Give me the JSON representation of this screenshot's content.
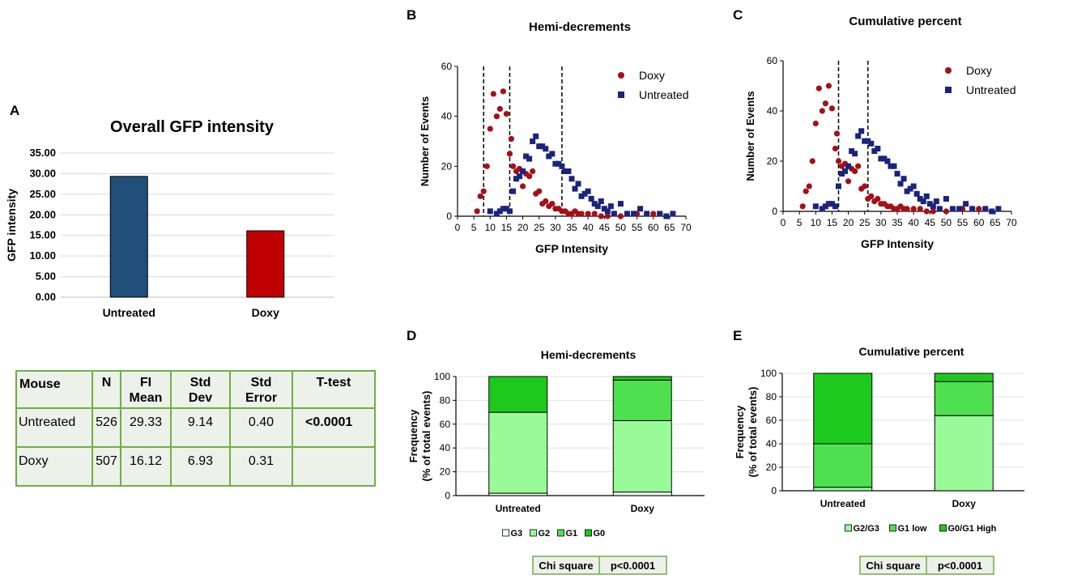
{
  "panels": {
    "A": {
      "letter": "A",
      "chart_data": {
        "type": "bar",
        "title": "Overall GFP intensity",
        "ylabel": "GFP intensity",
        "xlabel": "",
        "categories": [
          "Untreated",
          "Doxy"
        ],
        "values": [
          29.33,
          16.12
        ],
        "colors": [
          "#1f4e79",
          "#c00000"
        ],
        "ylim": [
          0,
          35
        ],
        "yticks": [
          "0.00",
          "5.00",
          "10.00",
          "15.00",
          "20.00",
          "25.00",
          "30.00",
          "35.00"
        ],
        "grid": true
      },
      "table": {
        "headers": [
          "Mouse",
          "N",
          "FI Mean",
          "Std Dev",
          "Std Error",
          "T-test"
        ],
        "rows": [
          [
            "Untreated",
            "526",
            "29.33",
            "9.14",
            "0.40",
            "<0.0001"
          ],
          [
            "Doxy",
            "507",
            "16.12",
            "6.93",
            "0.31",
            ""
          ]
        ]
      }
    },
    "B": {
      "letter": "B",
      "chart_data": {
        "type": "scatter",
        "title": "Hemi-decrements",
        "xlabel": "GFP Intensity",
        "ylabel": "Number of Events",
        "xlim": [
          0,
          70
        ],
        "ylim": [
          0,
          60
        ],
        "xticks": [
          "0",
          "5",
          "10",
          "15",
          "20",
          "25",
          "30",
          "35",
          "40",
          "45",
          "50",
          "55",
          "60",
          "65",
          "70"
        ],
        "yticks": [
          "0",
          "20",
          "40",
          "60"
        ],
        "vlines": [
          8,
          16,
          32
        ],
        "legend_position": "top-right",
        "series": [
          {
            "name": "Doxy",
            "color": "#a50f15",
            "marker": "circle",
            "x": [
              6,
              7,
              8,
              9,
              10,
              11,
              12,
              13,
              14,
              15,
              16,
              16.5,
              17,
              18,
              19,
              20,
              21,
              22,
              23,
              24,
              25,
              26,
              27,
              28,
              29,
              30,
              31,
              32,
              33,
              34,
              35,
              36,
              37,
              38,
              40,
              42,
              44,
              46,
              48,
              50,
              55,
              58,
              60,
              62
            ],
            "values": [
              2,
              8,
              10,
              20,
              35,
              49,
              40,
              43,
              50,
              41,
              25,
              31,
              20,
              18,
              19,
              12,
              17,
              16,
              18,
              9,
              10,
              5,
              6,
              4,
              5,
              3,
              3,
              2,
              2,
              1,
              1,
              2,
              1,
              1,
              1,
              1,
              0,
              0,
              1,
              0,
              1,
              1,
              1,
              1
            ]
          },
          {
            "name": "Untreated",
            "color": "#1a237e",
            "marker": "square",
            "x": [
              10,
              12,
              13,
              14,
              15,
              16,
              17,
              18,
              19,
              20,
              21,
              22,
              23,
              24,
              25,
              26,
              27,
              28,
              29,
              30,
              31,
              32,
              33,
              34,
              35,
              36,
              37,
              38,
              39,
              40,
              41,
              42,
              43,
              44,
              45,
              46,
              47,
              48,
              50,
              52,
              54,
              56,
              58,
              62,
              64,
              66
            ],
            "values": [
              2,
              1,
              2,
              3,
              3,
              2,
              10,
              15,
              16,
              18,
              24,
              23,
              30,
              32,
              28,
              28,
              27,
              24,
              25,
              21,
              21,
              20,
              18,
              18,
              15,
              11,
              13,
              8,
              9,
              10,
              7,
              5,
              4,
              6,
              3,
              2,
              4,
              1,
              5,
              1,
              1,
              3,
              1,
              1,
              0,
              1
            ]
          }
        ]
      }
    },
    "C": {
      "letter": "C",
      "chart_data": {
        "type": "scatter",
        "title": "Cumulative percent",
        "xlabel": "GFP Intensity",
        "ylabel": "Number of Events",
        "xlim": [
          0,
          70
        ],
        "ylim": [
          0,
          60
        ],
        "xticks": [
          "0",
          "5",
          "10",
          "15",
          "20",
          "25",
          "30",
          "35",
          "40",
          "45",
          "50",
          "55",
          "60",
          "65",
          "70"
        ],
        "yticks": [
          "0",
          "20",
          "40",
          "60"
        ],
        "vlines": [
          17,
          26
        ],
        "legend_position": "top-right",
        "series": [
          {
            "name": "Doxy",
            "color": "#a50f15",
            "marker": "circle",
            "x": [
              6,
              7,
              8,
              9,
              10,
              11,
              12,
              13,
              14,
              15,
              16,
              16.5,
              17,
              18,
              19,
              20,
              21,
              22,
              23,
              24,
              25,
              26,
              27,
              28,
              29,
              30,
              31,
              32,
              33,
              34,
              35,
              36,
              37,
              38,
              40,
              42,
              44,
              46,
              48,
              50,
              55,
              58,
              60,
              62
            ],
            "values": [
              2,
              8,
              10,
              20,
              35,
              49,
              40,
              43,
              50,
              41,
              25,
              31,
              20,
              18,
              19,
              12,
              17,
              16,
              18,
              9,
              10,
              5,
              6,
              4,
              5,
              3,
              3,
              2,
              2,
              1,
              1,
              2,
              1,
              1,
              1,
              1,
              0,
              0,
              1,
              0,
              1,
              1,
              1,
              1
            ]
          },
          {
            "name": "Untreated",
            "color": "#1a237e",
            "marker": "square",
            "x": [
              10,
              12,
              13,
              14,
              15,
              16,
              17,
              18,
              19,
              20,
              21,
              22,
              23,
              24,
              25,
              26,
              27,
              28,
              29,
              30,
              31,
              32,
              33,
              34,
              35,
              36,
              37,
              38,
              39,
              40,
              41,
              42,
              43,
              44,
              45,
              46,
              47,
              48,
              50,
              52,
              54,
              56,
              58,
              62,
              64,
              66
            ],
            "values": [
              2,
              1,
              2,
              3,
              3,
              2,
              10,
              15,
              16,
              18,
              24,
              23,
              30,
              32,
              28,
              28,
              27,
              24,
              25,
              21,
              21,
              20,
              18,
              18,
              15,
              11,
              13,
              8,
              9,
              10,
              7,
              5,
              4,
              6,
              3,
              2,
              4,
              1,
              5,
              1,
              1,
              3,
              1,
              1,
              0,
              1
            ]
          }
        ]
      }
    },
    "D": {
      "letter": "D",
      "chart_data": {
        "type": "bar",
        "stacked": true,
        "title": "Hemi-decrements",
        "ylabel": "Frequency\n(% of total events)",
        "categories": [
          "Untreated",
          "Doxy"
        ],
        "ylim": [
          0,
          100
        ],
        "yticks": [
          "0",
          "20",
          "40",
          "60",
          "80",
          "100"
        ],
        "legend_position": "bottom",
        "series": [
          {
            "name": "G3",
            "color": "#f4fff4",
            "values": [
              2,
              3
            ]
          },
          {
            "name": "G2",
            "color": "#98fb98",
            "values": [
              68,
              60
            ]
          },
          {
            "name": "G1",
            "color": "#4ee04e",
            "values": [
              0,
              34
            ]
          },
          {
            "name": "G0",
            "color": "#1ec91e",
            "values": [
              30,
              3
            ]
          }
        ],
        "chi_square": {
          "label": "Chi square",
          "value": "p<0.0001"
        }
      }
    },
    "E": {
      "letter": "E",
      "chart_data": {
        "type": "bar",
        "stacked": true,
        "title": "Cumulative percent",
        "ylabel": "Frequency\n(% of total events)",
        "categories": [
          "Untreated",
          "Doxy"
        ],
        "ylim": [
          0,
          100
        ],
        "yticks": [
          "0",
          "20",
          "40",
          "60",
          "80",
          "100"
        ],
        "legend_position": "bottom",
        "series": [
          {
            "name": "G2/G3",
            "color": "#98fb98",
            "values": [
              3,
              64
            ]
          },
          {
            "name": "G1 low",
            "color": "#4ee04e",
            "values": [
              37,
              29
            ]
          },
          {
            "name": "G0/G1 High",
            "color": "#1ec91e",
            "values": [
              60,
              7
            ]
          }
        ],
        "chi_square": {
          "label": "Chi square",
          "value": "p<0.0001"
        }
      }
    }
  }
}
